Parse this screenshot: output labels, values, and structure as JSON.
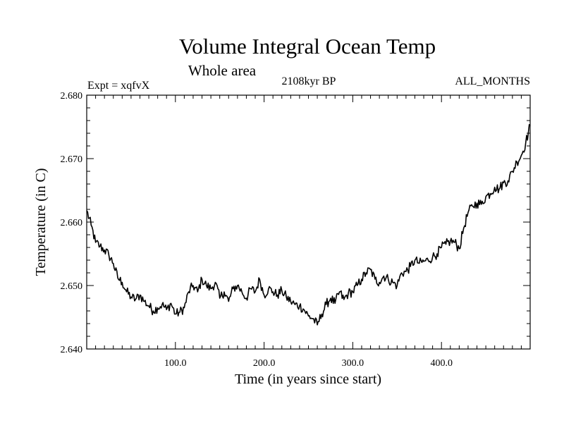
{
  "chart_data": {
    "type": "line",
    "title": "Volume Integral Ocean Temp",
    "subtitle": "Whole area",
    "info_left": "Expt = xqfvX",
    "info_center": "2108kyr BP",
    "info_right": "ALL_MONTHS",
    "xlabel": "Time (in years since start)",
    "ylabel": "Temperature (in C)",
    "xlim": [
      0,
      500
    ],
    "ylim": [
      2.64,
      2.68
    ],
    "xticks": [
      100,
      200,
      300,
      400
    ],
    "xtick_labels": [
      "100.0",
      "200.0",
      "300.0",
      "400.0"
    ],
    "yticks": [
      2.64,
      2.65,
      2.66,
      2.67,
      2.68
    ],
    "ytick_labels": [
      "2.640",
      "2.650",
      "2.660",
      "2.670",
      "2.680"
    ],
    "series": [
      {
        "name": "Volume Integral Ocean Temp",
        "color": "#000000",
        "x": [
          0,
          5,
          10,
          15,
          20,
          25,
          30,
          35,
          40,
          45,
          50,
          55,
          60,
          65,
          70,
          75,
          80,
          85,
          90,
          95,
          100,
          105,
          110,
          115,
          120,
          125,
          130,
          135,
          140,
          145,
          150,
          155,
          160,
          165,
          170,
          175,
          180,
          185,
          190,
          195,
          200,
          205,
          210,
          215,
          220,
          225,
          230,
          235,
          240,
          245,
          250,
          255,
          260,
          265,
          270,
          275,
          280,
          285,
          290,
          295,
          300,
          305,
          310,
          315,
          320,
          325,
          330,
          335,
          340,
          345,
          350,
          355,
          360,
          365,
          370,
          375,
          380,
          385,
          390,
          395,
          400,
          405,
          410,
          415,
          420,
          425,
          430,
          435,
          440,
          445,
          450,
          455,
          460,
          465,
          470,
          475,
          480,
          485,
          490,
          495,
          500
        ],
        "y": [
          2.6618,
          2.6595,
          2.6568,
          2.6562,
          2.6556,
          2.6548,
          2.6535,
          2.6512,
          2.6505,
          2.649,
          2.6482,
          2.6478,
          2.6485,
          2.6475,
          2.6468,
          2.646,
          2.6465,
          2.647,
          2.6462,
          2.6472,
          2.6455,
          2.6458,
          2.6465,
          2.649,
          2.65,
          2.649,
          2.651,
          2.65,
          2.6495,
          2.6505,
          2.648,
          2.649,
          2.6475,
          2.6495,
          2.65,
          2.649,
          2.648,
          2.6495,
          2.649,
          2.651,
          2.6485,
          2.6495,
          2.649,
          2.6485,
          2.6492,
          2.6482,
          2.6475,
          2.647,
          2.6468,
          2.6462,
          2.6452,
          2.6448,
          2.6438,
          2.6455,
          2.647,
          2.648,
          2.6472,
          2.649,
          2.6478,
          2.6488,
          2.649,
          2.65,
          2.651,
          2.652,
          2.6525,
          2.651,
          2.6505,
          2.6515,
          2.651,
          2.6505,
          2.65,
          2.652,
          2.6522,
          2.653,
          2.654,
          2.6535,
          2.6538,
          2.654,
          2.6545,
          2.655,
          2.656,
          2.6565,
          2.657,
          2.6568,
          2.6558,
          2.659,
          2.6615,
          2.6625,
          2.663,
          2.6628,
          2.664,
          2.6645,
          2.6655,
          2.6652,
          2.6662,
          2.6665,
          2.668,
          2.6695,
          2.6705,
          2.6725,
          2.6752
        ]
      }
    ]
  }
}
